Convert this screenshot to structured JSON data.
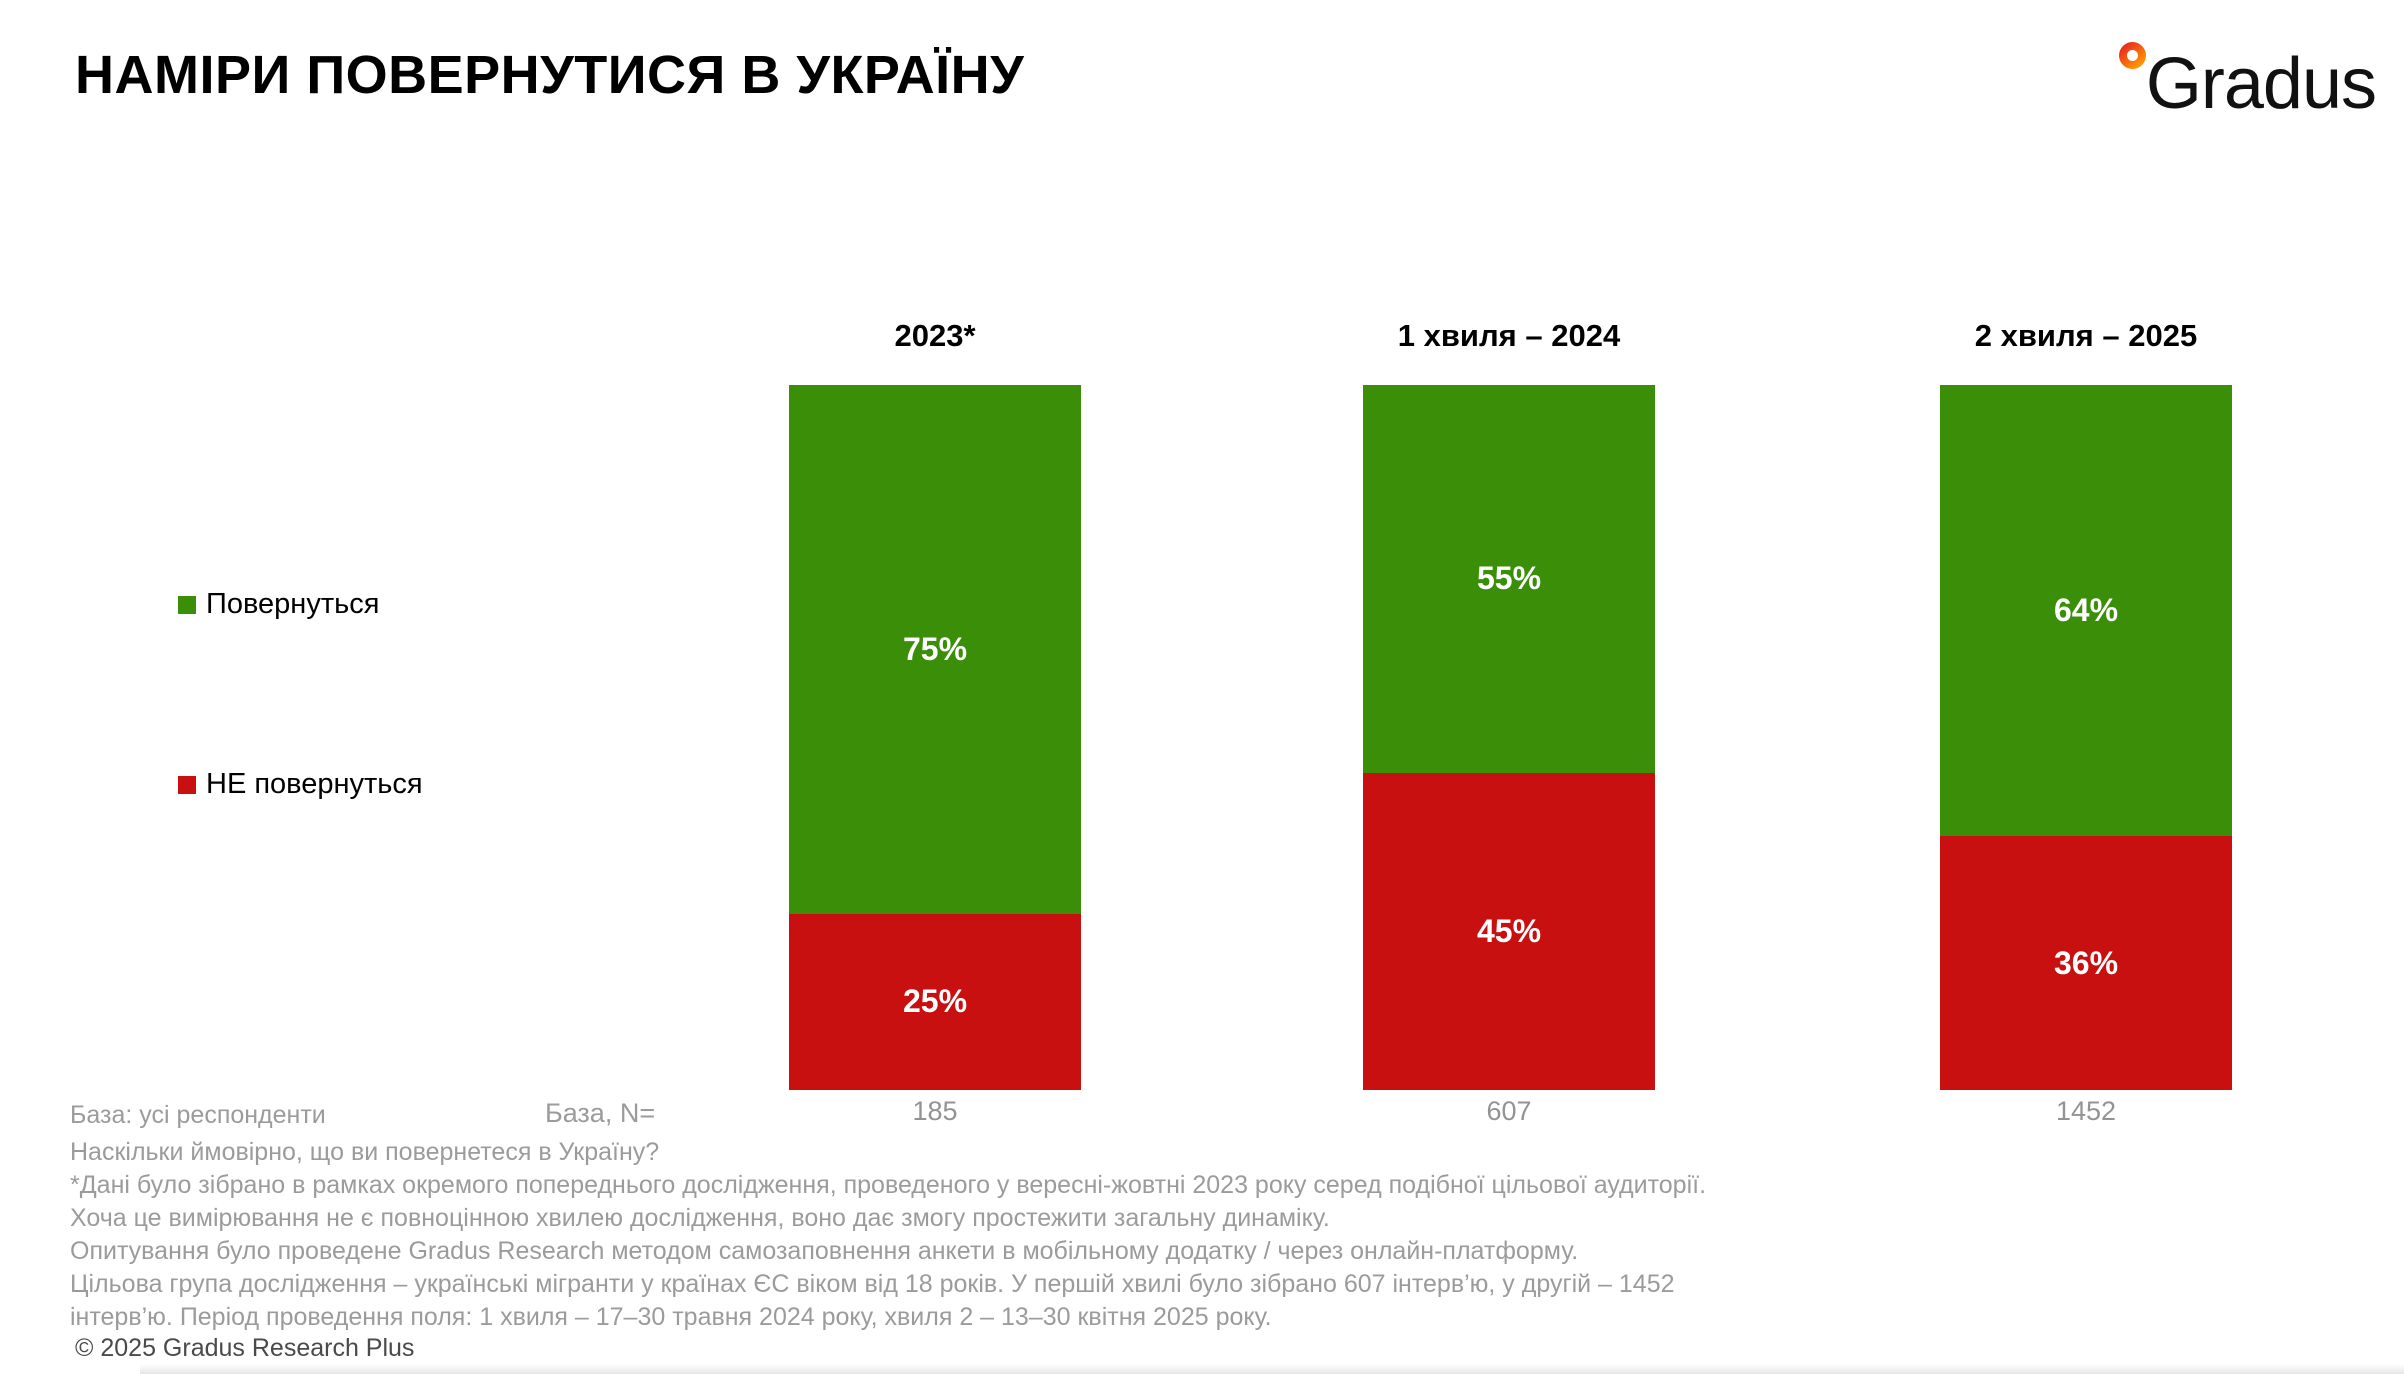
{
  "title": "НАМІРИ ПОВЕРНУТИСЯ В УКРАЇНУ",
  "logo": {
    "text": "Gradus"
  },
  "colors": {
    "green": "#3A8E08",
    "red": "#C81010",
    "gray_text": "#9B9B9B"
  },
  "chart_data": {
    "type": "bar",
    "stacked": true,
    "orientation": "vertical",
    "categories": [
      "2023*",
      "1 хвиля – 2024",
      "2 хвиля – 2025"
    ],
    "series": [
      {
        "name": "Повернуться",
        "color": "#3A8E08",
        "values": [
          75,
          55,
          64
        ]
      },
      {
        "name": "НЕ повернуться",
        "color": "#C81010",
        "values": [
          25,
          45,
          36
        ]
      }
    ],
    "value_labels": [
      [
        "75%",
        "55%",
        "64%"
      ],
      [
        "25%",
        "45%",
        "36%"
      ]
    ],
    "base_n": [
      "185",
      "607",
      "1452"
    ],
    "ylim": [
      0,
      100
    ],
    "grid": false,
    "legend_position": "left"
  },
  "footer": {
    "base_label": "База: усі респонденти",
    "base_n_label": "База, N=",
    "question": "Наскільки ймовірно, що ви повернетеся в Україну?",
    "notes": [
      "*Дані було зібрано в рамках окремого попереднього дослідження, проведеного у вересні-жовтні 2023 року серед подібної цільової аудиторії.",
      "Хоча це вимірювання не є повноцінною хвилею дослідження, воно дає змогу простежити загальну динаміку.",
      "Опитування було проведене Gradus Research методом самозаповнення анкети в мобільному додатку / через онлайн-платформу.",
      "Цільова група дослідження – українські мігранти у країнах ЄС віком від 18 років. У першій хвилі було зібрано 607 інтерв’ю, у другій – 1452",
      "інтерв’ю. Період проведення поля: 1 хвиля – 17–30 травня 2024 року, хвиля 2 – 13–30 квітня 2025 року."
    ],
    "copyright": "© 2025 Gradus Research Plus"
  }
}
